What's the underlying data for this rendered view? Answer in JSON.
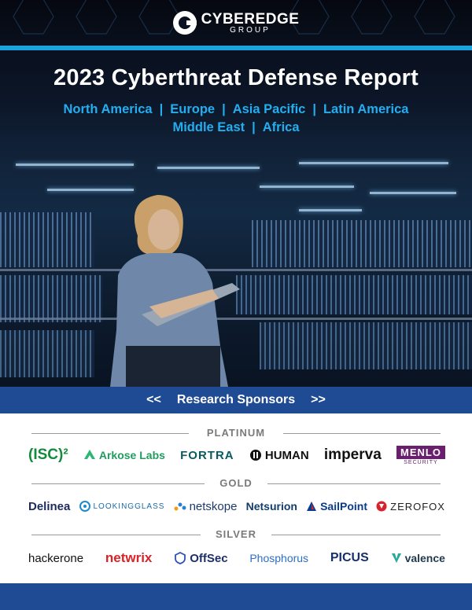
{
  "brand": {
    "name": "CYBEREDGE",
    "sub": "GROUP"
  },
  "title": "2023 Cyberthreat Defense Report",
  "regions": {
    "line1": [
      "North America",
      "Europe",
      "Asia Pacific",
      "Latin America"
    ],
    "line2": [
      "Middle East",
      "Africa"
    ],
    "separator": "|"
  },
  "banner": {
    "left": "<<",
    "label": "Research Sponsors",
    "right": ">>"
  },
  "tiers": {
    "platinum": {
      "label": "PLATINUM",
      "logos": [
        "(ISC)²",
        "Arkose Labs",
        "FORTRA",
        "HUMAN",
        "imperva",
        "MENLO",
        "SECURITY"
      ]
    },
    "gold": {
      "label": "GOLD",
      "logos": [
        "Delinea",
        "LOOKINGGLASS",
        "netskope",
        "Netsurion",
        "SailPoint",
        "ZEROFOX"
      ]
    },
    "silver": {
      "label": "SILVER",
      "logos": [
        "hackerone",
        "netwrix",
        "OffSec",
        "Phosphorus",
        "PICUS",
        "valence"
      ]
    }
  },
  "colors": {
    "accent": "#1aa3dd",
    "navy": "#1f4a94",
    "region_text": "#22aef0"
  }
}
